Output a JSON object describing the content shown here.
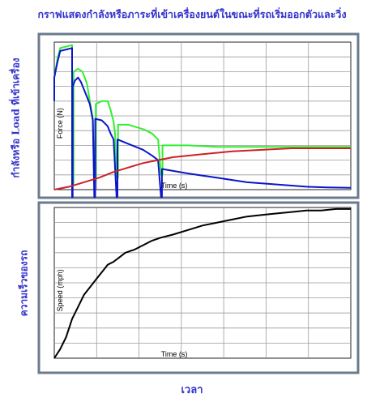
{
  "title": "กราฟแสดงกำลังหรือภาระที่เข้าเครื่องยนต์ในขณะที่รถเริ่มออกตัวและวิ่ง",
  "left_label_top": "กำลังหรือ Load ที่เข้าเครื่อง",
  "left_label_bottom": "ความเร็วของรถ",
  "bottom_label": "เวลา",
  "colors": {
    "title": "#3333cc",
    "panel_border": "#6b7b8c",
    "grid": "#9a9a9a",
    "series_green": "#33ee33",
    "series_blue": "#0b16c8",
    "series_red": "#cc2222",
    "series_black": "#000000"
  },
  "chart_data": [
    {
      "type": "line",
      "ylabel": "Force (N)",
      "xlabel": "Time (s)",
      "grid": true,
      "x_divisions": 7,
      "y_divisions": 10,
      "xlim": [
        0,
        1
      ],
      "ylim": [
        0,
        1
      ],
      "series": [
        {
          "color": "#33ee33",
          "points": [
            [
              0,
              0.6
            ],
            [
              0.0,
              0.76
            ],
            [
              0.01,
              0.88
            ],
            [
              0.02,
              0.96
            ],
            [
              0.04,
              0.97
            ],
            [
              0.06,
              0.98
            ],
            [
              0.06,
              0.04
            ],
            [
              0.065,
              0.04
            ],
            [
              0.065,
              0.8
            ],
            [
              0.08,
              0.82
            ],
            [
              0.095,
              0.8
            ],
            [
              0.11,
              0.72
            ],
            [
              0.12,
              0.6
            ],
            [
              0.13,
              0.48
            ],
            [
              0.135,
              0.06
            ],
            [
              0.14,
              0.06
            ],
            [
              0.14,
              0.58
            ],
            [
              0.16,
              0.6
            ],
            [
              0.18,
              0.6
            ],
            [
              0.19,
              0.54
            ],
            [
              0.2,
              0.46
            ],
            [
              0.205,
              0.38
            ],
            [
              0.21,
              0.08
            ],
            [
              0.215,
              0.08
            ],
            [
              0.215,
              0.44
            ],
            [
              0.25,
              0.44
            ],
            [
              0.3,
              0.41
            ],
            [
              0.33,
              0.38
            ],
            [
              0.35,
              0.34
            ],
            [
              0.36,
              0.1
            ],
            [
              0.365,
              0.1
            ],
            [
              0.365,
              0.3
            ],
            [
              0.45,
              0.3
            ],
            [
              0.55,
              0.29
            ],
            [
              0.7,
              0.29
            ],
            [
              0.85,
              0.29
            ],
            [
              1.0,
              0.29
            ]
          ]
        },
        {
          "color": "#0b16c8",
          "points": [
            [
              0,
              0.6
            ],
            [
              0.0,
              0.76
            ],
            [
              0.01,
              0.86
            ],
            [
              0.02,
              0.94
            ],
            [
              0.04,
              0.95
            ],
            [
              0.06,
              0.96
            ],
            [
              0.06,
              -0.05
            ],
            [
              0.062,
              -0.05
            ],
            [
              0.062,
              0.7
            ],
            [
              0.07,
              0.74
            ],
            [
              0.08,
              0.76
            ],
            [
              0.09,
              0.73
            ],
            [
              0.1,
              0.68
            ],
            [
              0.12,
              0.58
            ],
            [
              0.13,
              0.47
            ],
            [
              0.135,
              -0.05
            ],
            [
              0.138,
              -0.05
            ],
            [
              0.138,
              0.48
            ],
            [
              0.16,
              0.47
            ],
            [
              0.18,
              0.43
            ],
            [
              0.19,
              0.38
            ],
            [
              0.2,
              0.34
            ],
            [
              0.21,
              -0.05
            ],
            [
              0.213,
              -0.05
            ],
            [
              0.213,
              0.34
            ],
            [
              0.25,
              0.31
            ],
            [
              0.3,
              0.27
            ],
            [
              0.33,
              0.23
            ],
            [
              0.35,
              0.2
            ],
            [
              0.36,
              -0.05
            ],
            [
              0.363,
              -0.05
            ],
            [
              0.363,
              0.14
            ],
            [
              0.45,
              0.11
            ],
            [
              0.55,
              0.08
            ],
            [
              0.65,
              0.05
            ],
            [
              0.75,
              0.035
            ],
            [
              0.85,
              0.02
            ],
            [
              0.92,
              0.015
            ],
            [
              1.0,
              0.012
            ]
          ]
        },
        {
          "color": "#cc2222",
          "points": [
            [
              0,
              0
            ],
            [
              0.05,
              0.02
            ],
            [
              0.1,
              0.05
            ],
            [
              0.15,
              0.08
            ],
            [
              0.2,
              0.12
            ],
            [
              0.25,
              0.15
            ],
            [
              0.3,
              0.18
            ],
            [
              0.35,
              0.2
            ],
            [
              0.4,
              0.22
            ],
            [
              0.5,
              0.24
            ],
            [
              0.6,
              0.26
            ],
            [
              0.7,
              0.27
            ],
            [
              0.8,
              0.28
            ],
            [
              0.9,
              0.28
            ],
            [
              1.0,
              0.28
            ]
          ]
        }
      ]
    },
    {
      "type": "line",
      "ylabel": "Speed (mph)",
      "xlabel": "Time (s)",
      "grid": true,
      "x_divisions": 7,
      "y_divisions": 10,
      "xlim": [
        0,
        1
      ],
      "ylim": [
        0,
        1
      ],
      "series": [
        {
          "color": "#000000",
          "points": [
            [
              0,
              0
            ],
            [
              0.02,
              0.06
            ],
            [
              0.04,
              0.14
            ],
            [
              0.06,
              0.26
            ],
            [
              0.08,
              0.34
            ],
            [
              0.1,
              0.42
            ],
            [
              0.12,
              0.47
            ],
            [
              0.14,
              0.52
            ],
            [
              0.16,
              0.57
            ],
            [
              0.18,
              0.62
            ],
            [
              0.2,
              0.64
            ],
            [
              0.22,
              0.67
            ],
            [
              0.24,
              0.7
            ],
            [
              0.27,
              0.72
            ],
            [
              0.3,
              0.75
            ],
            [
              0.33,
              0.78
            ],
            [
              0.36,
              0.8
            ],
            [
              0.4,
              0.82
            ],
            [
              0.45,
              0.85
            ],
            [
              0.5,
              0.88
            ],
            [
              0.55,
              0.9
            ],
            [
              0.6,
              0.92
            ],
            [
              0.65,
              0.94
            ],
            [
              0.7,
              0.95
            ],
            [
              0.75,
              0.96
            ],
            [
              0.8,
              0.97
            ],
            [
              0.85,
              0.98
            ],
            [
              0.9,
              0.98
            ],
            [
              0.95,
              0.99
            ],
            [
              1.0,
              0.99
            ]
          ]
        }
      ]
    }
  ]
}
